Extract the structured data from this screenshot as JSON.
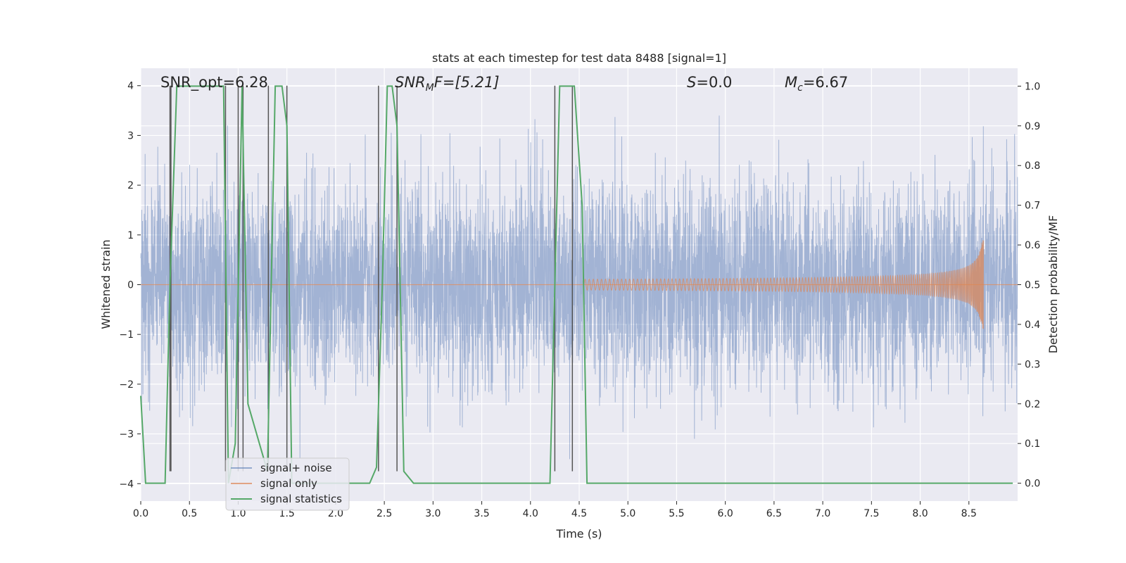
{
  "chart_data": {
    "type": "line",
    "title": "stats at each timestep for test data 8488 [signal=1]",
    "xlabel": "Time (s)",
    "ylabel_left": "Whitened strain",
    "ylabel_right": "Detection probability/MF",
    "xlim": [
      0.0,
      9.0
    ],
    "ylim_left": [
      -4.35,
      4.35
    ],
    "ylim_right": [
      -0.045,
      1.045
    ],
    "x_ticks": [
      "0.0",
      "0.5",
      "1.0",
      "1.5",
      "2.0",
      "2.5",
      "3.0",
      "3.5",
      "4.0",
      "4.5",
      "5.0",
      "5.5",
      "6.0",
      "6.5",
      "7.0",
      "7.5",
      "8.0",
      "8.5"
    ],
    "y_left_ticks": [
      "4",
      "3",
      "2",
      "1",
      "0",
      "−1",
      "−2",
      "−3",
      "−4"
    ],
    "y_right_ticks": [
      "1.0",
      "0.9",
      "0.8",
      "0.7",
      "0.6",
      "0.5",
      "0.4",
      "0.3",
      "0.2",
      "0.1",
      "0.0"
    ],
    "grid": true,
    "annotations": {
      "snr_opt": "SNR_opt=6.28",
      "snr_mf_label": "SNR",
      "snr_mf_sub": "M",
      "snr_mf_tail": "F=[5.21]",
      "s_label": "S",
      "s_value": "=0.0",
      "mc_label": "M",
      "mc_sub": "c",
      "mc_value": "=6.67"
    },
    "legend": {
      "location": "lower-left",
      "entries": [
        "signal+ noise",
        "signal only",
        "signal statistics"
      ]
    },
    "colors": {
      "noise": "#4c72b0",
      "signal": "#dd8452",
      "stats": "#55a868",
      "vlines": "#555555",
      "background": "#eaeaf2"
    },
    "series": [
      {
        "name": "signal+ noise",
        "description": "whitened strain, dense noise roughly within ±3.4",
        "noise_envelope": 3.4
      },
      {
        "name": "signal only",
        "description": "chirp waveform growing toward merger",
        "start": 4.55,
        "merger": 8.65,
        "peak_amplitude": 0.9
      },
      {
        "name": "signal statistics",
        "x": [
          0.0,
          0.05,
          0.25,
          0.3,
          0.37,
          0.85,
          0.9,
          0.97,
          1.04,
          1.1,
          1.3,
          1.38,
          1.45,
          1.5,
          1.55,
          2.35,
          2.42,
          2.48,
          2.53,
          2.58,
          2.63,
          2.7,
          2.8,
          2.9,
          4.2,
          4.25,
          4.3,
          4.45,
          4.53,
          4.58,
          8.95
        ],
        "y": [
          0.22,
          0.0,
          0.0,
          0.5,
          1.0,
          1.0,
          0.0,
          0.1,
          1.0,
          0.2,
          0.03,
          1.0,
          1.0,
          0.9,
          0.0,
          0.0,
          0.04,
          0.5,
          1.0,
          1.0,
          0.9,
          0.03,
          0.0,
          0.0,
          0.0,
          0.5,
          1.0,
          1.0,
          0.7,
          0.0,
          0.0
        ]
      }
    ],
    "vertical_lines_x": [
      0.3,
      0.31,
      0.87,
      1.0,
      1.05,
      1.31,
      1.5,
      2.44,
      2.63,
      4.25,
      4.43
    ]
  }
}
